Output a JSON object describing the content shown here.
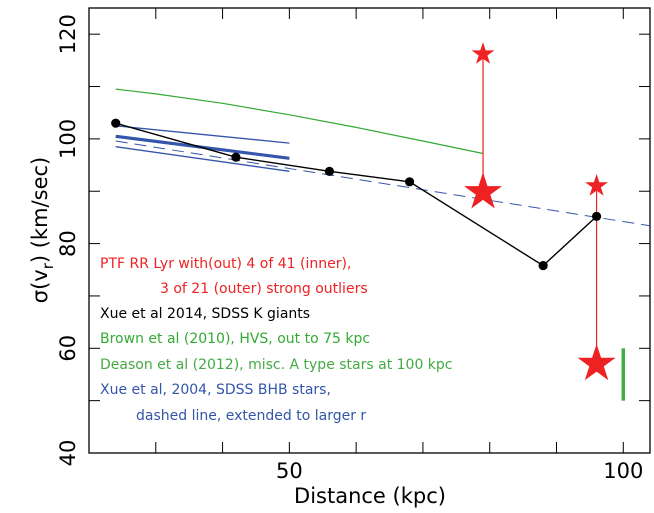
{
  "chart_data": {
    "type": "line",
    "xlabel": "Distance (kpc)",
    "ylabel_parts": {
      "prefix": "σ(v",
      "subscript": "r",
      "suffix": ") (km/sec)"
    },
    "xlim": [
      20,
      104
    ],
    "ylim": [
      40,
      125
    ],
    "x_tick_labels": [
      {
        "value": 50,
        "label": "50"
      },
      {
        "value": 100,
        "label": "100"
      }
    ],
    "y_tick_labels": [
      {
        "value": 40,
        "label": "40"
      },
      {
        "value": 60,
        "label": "60"
      },
      {
        "value": 80,
        "label": "80"
      },
      {
        "value": 100,
        "label": "100"
      },
      {
        "value": 120,
        "label": "120"
      }
    ],
    "x_major_ticks": [
      30,
      40,
      50,
      60,
      70,
      80,
      90,
      100
    ],
    "y_major_ticks": [
      40,
      50,
      60,
      70,
      80,
      90,
      100,
      110,
      120
    ],
    "colors": {
      "ptf": "#ee2222",
      "xue2014": "#000000",
      "brown": "#33aa33",
      "deason": "#44aa44",
      "xue2004": "#3355aa"
    },
    "series": [
      {
        "key": "xue2014",
        "points": [
          [
            24,
            103
          ],
          [
            42,
            96.5
          ],
          [
            56,
            93.8
          ],
          [
            68,
            91.8
          ],
          [
            88,
            75.8
          ],
          [
            96,
            85.2
          ]
        ]
      },
      {
        "key": "brown",
        "points": [
          [
            24,
            109.5
          ],
          [
            30,
            108.6
          ],
          [
            40,
            106.8
          ],
          [
            50,
            104.6
          ],
          [
            60,
            102.2
          ],
          [
            70,
            99.6
          ],
          [
            79,
            97.2
          ]
        ]
      },
      {
        "key": "xue2004_central",
        "points": [
          [
            24,
            100.5
          ],
          [
            50,
            96.3
          ]
        ]
      },
      {
        "key": "xue2004_upper",
        "points": [
          [
            24,
            102.5
          ],
          [
            50,
            99.2
          ]
        ]
      },
      {
        "key": "xue2004_lower",
        "points": [
          [
            24,
            98.5
          ],
          [
            50,
            93.8
          ]
        ]
      },
      {
        "key": "xue2004_dashed",
        "points": [
          [
            24,
            99.6
          ],
          [
            104,
            83.4
          ]
        ]
      },
      {
        "key": "ptf",
        "points": [
          {
            "x": 79,
            "y_with": 116.2,
            "y_without": 89.8
          },
          {
            "x": 96,
            "y_with": 91.0,
            "y_without": 57.0
          }
        ]
      },
      {
        "key": "deason",
        "points": [
          {
            "x": 100,
            "y_low": 50,
            "y_high": 60
          }
        ]
      }
    ]
  },
  "legend": [
    {
      "text": "PTF RR Lyr with(out) 4 of 41 (inner),",
      "color": "#ee2222"
    },
    {
      "text": "3 of 21 (outer) strong outliers",
      "color": "#ee2222"
    },
    {
      "text": "Xue et al 2014, SDSS K giants",
      "color": "#000000"
    },
    {
      "text": "Brown et al (2010), HVS, out to 75 kpc",
      "color": "#33aa33"
    },
    {
      "text": "Deason et al (2012), misc. A type stars at 100 kpc",
      "color": "#44aa44"
    },
    {
      "text": "Xue et al, 2004, SDSS BHB stars,",
      "color": "#3355aa"
    },
    {
      "text": "dashed line, extended to larger r",
      "color": "#3355aa"
    }
  ]
}
